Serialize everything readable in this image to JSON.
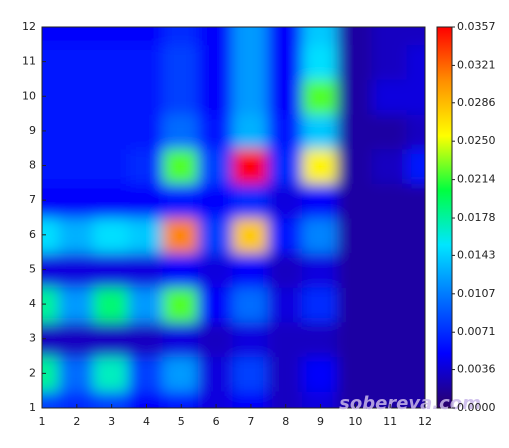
{
  "chart_data": {
    "type": "heatmap",
    "x": [
      1,
      2,
      3,
      4,
      5,
      6,
      7,
      8,
      9,
      10,
      11,
      12
    ],
    "y": [
      1,
      2,
      3,
      4,
      5,
      6,
      7,
      8,
      9,
      10,
      11,
      12
    ],
    "z": [
      [
        0.008,
        0.007,
        0.008,
        0.005,
        0.006,
        0.004,
        0.005,
        0.003,
        0.004,
        0.002,
        0.002,
        0.002
      ],
      [
        0.018,
        0.01,
        0.017,
        0.008,
        0.012,
        0.004,
        0.008,
        0.003,
        0.005,
        0.002,
        0.002,
        0.002
      ],
      [
        0.003,
        0.003,
        0.003,
        0.003,
        0.004,
        0.003,
        0.004,
        0.003,
        0.003,
        0.002,
        0.002,
        0.002
      ],
      [
        0.018,
        0.012,
        0.019,
        0.012,
        0.022,
        0.005,
        0.01,
        0.004,
        0.007,
        0.002,
        0.002,
        0.002
      ],
      [
        0.004,
        0.004,
        0.004,
        0.004,
        0.005,
        0.004,
        0.005,
        0.003,
        0.004,
        0.002,
        0.002,
        0.002
      ],
      [
        0.015,
        0.013,
        0.015,
        0.014,
        0.031,
        0.008,
        0.028,
        0.006,
        0.011,
        0.002,
        0.002,
        0.002
      ],
      [
        0.005,
        0.005,
        0.005,
        0.005,
        0.006,
        0.005,
        0.007,
        0.004,
        0.005,
        0.002,
        0.002,
        0.002
      ],
      [
        0.006,
        0.006,
        0.006,
        0.007,
        0.022,
        0.008,
        0.0357,
        0.007,
        0.026,
        0.002,
        0.003,
        0.006
      ],
      [
        0.006,
        0.006,
        0.006,
        0.006,
        0.01,
        0.006,
        0.013,
        0.006,
        0.014,
        0.002,
        0.002,
        0.003
      ],
      [
        0.006,
        0.006,
        0.006,
        0.006,
        0.008,
        0.005,
        0.012,
        0.005,
        0.022,
        0.002,
        0.004,
        0.004
      ],
      [
        0.006,
        0.006,
        0.006,
        0.006,
        0.008,
        0.005,
        0.012,
        0.005,
        0.015,
        0.002,
        0.003,
        0.004
      ],
      [
        0.005,
        0.005,
        0.005,
        0.005,
        0.007,
        0.005,
        0.012,
        0.005,
        0.014,
        0.002,
        0.003,
        0.003
      ]
    ],
    "xlim": [
      1,
      12
    ],
    "ylim": [
      1,
      12
    ],
    "xticks": [
      1,
      2,
      3,
      4,
      5,
      6,
      7,
      8,
      9,
      10,
      11,
      12
    ],
    "yticks": [
      1,
      2,
      3,
      4,
      5,
      6,
      7,
      8,
      9,
      10,
      11,
      12
    ],
    "zlim": [
      0,
      0.0357
    ],
    "zticks": [
      {
        "value": 0.0357,
        "label": "0.0357"
      },
      {
        "value": 0.0321,
        "label": "0.0321"
      },
      {
        "value": 0.0286,
        "label": "0.0286"
      },
      {
        "value": 0.025,
        "label": "0.0250"
      },
      {
        "value": 0.0214,
        "label": "0.0214"
      },
      {
        "value": 0.0178,
        "label": "0.0178"
      },
      {
        "value": 0.0143,
        "label": "0.0143"
      },
      {
        "value": 0.0107,
        "label": "0.0107"
      },
      {
        "value": 0.0071,
        "label": "0.0071"
      },
      {
        "value": 0.0036,
        "label": "0.0036"
      },
      {
        "value": 0,
        "label": "0.0000"
      }
    ],
    "colormap": [
      "#2c0068",
      "#0000ff",
      "#0070ff",
      "#00e6ff",
      "#00ff40",
      "#ffff00",
      "#ff9000",
      "#ff0000"
    ],
    "watermark": "sobereva.com"
  }
}
